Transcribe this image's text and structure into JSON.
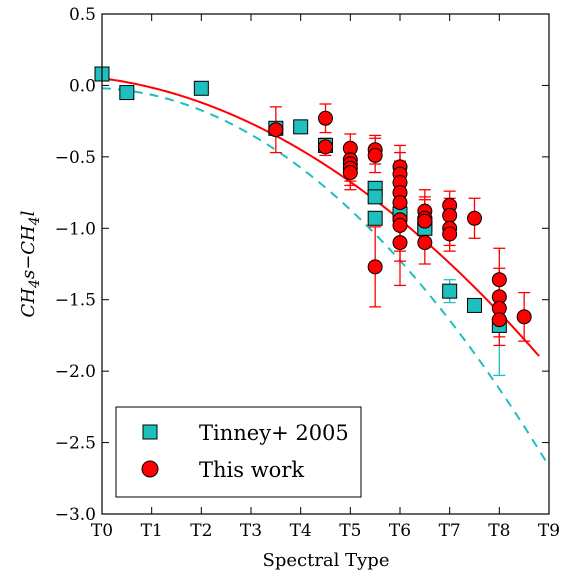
{
  "chart_data": {
    "type": "scatter",
    "xlabel": "Spectral Type",
    "ylabel": "CH4s−CH4l",
    "ylabel_parts": {
      "a": "CH",
      "a_sub": "4",
      "b": "s−CH",
      "b_sub": "4",
      "c": "l"
    },
    "xlim": [
      0,
      9
    ],
    "ylim": [
      -3.0,
      0.5
    ],
    "x_ticks": [
      0,
      1,
      2,
      3,
      4,
      5,
      6,
      7,
      8,
      9
    ],
    "x_tick_labels": [
      "T0",
      "T1",
      "T2",
      "T3",
      "T4",
      "T5",
      "T6",
      "T7",
      "T8",
      "T9"
    ],
    "y_ticks": [
      0.5,
      0.0,
      -0.5,
      -1.0,
      -1.5,
      -2.0,
      -2.5,
      -3.0
    ],
    "y_tick_labels": [
      "0.5",
      "0.0",
      "−0.5",
      "−1.0",
      "−1.5",
      "−2.0",
      "−2.5",
      "−3.0"
    ],
    "grid": false,
    "legend_position": "bottom-left",
    "series": [
      {
        "name": "Tinney+ 2005",
        "marker": "square",
        "color": "#1fbfbf",
        "points": [
          {
            "x": 0.0,
            "y": 0.08
          },
          {
            "x": 0.5,
            "y": -0.05
          },
          {
            "x": 2.0,
            "y": -0.02
          },
          {
            "x": 3.5,
            "y": -0.3
          },
          {
            "x": 4.0,
            "y": -0.29
          },
          {
            "x": 4.5,
            "y": -0.42
          },
          {
            "x": 5.5,
            "y": -0.72
          },
          {
            "x": 5.5,
            "y": -0.78
          },
          {
            "x": 5.5,
            "y": -0.93
          },
          {
            "x": 6.0,
            "y": -0.9
          },
          {
            "x": 6.5,
            "y": -0.97
          },
          {
            "x": 6.5,
            "y": -1.0
          },
          {
            "x": 7.0,
            "y": -1.44,
            "err": 0.08
          },
          {
            "x": 7.5,
            "y": -1.54
          },
          {
            "x": 8.0,
            "y": -1.68,
            "err": 0.35
          }
        ]
      },
      {
        "name": "This work",
        "marker": "circle",
        "color": "#ff0000",
        "points": [
          {
            "x": 3.5,
            "y": -0.31,
            "err": 0.16
          },
          {
            "x": 4.5,
            "y": -0.23,
            "err": 0.1
          },
          {
            "x": 4.5,
            "y": -0.43,
            "err": 0.06
          },
          {
            "x": 5.0,
            "y": -0.44,
            "err": 0.1
          },
          {
            "x": 5.0,
            "y": -0.52,
            "err": 0.1
          },
          {
            "x": 5.0,
            "y": -0.55,
            "err": 0.12
          },
          {
            "x": 5.0,
            "y": -0.58,
            "err": 0.12
          },
          {
            "x": 5.0,
            "y": -0.61,
            "err": 0.12
          },
          {
            "x": 5.5,
            "y": -0.45,
            "err": 0.1
          },
          {
            "x": 5.5,
            "y": -0.49,
            "err": 0.12
          },
          {
            "x": 5.5,
            "y": -1.27,
            "err": 0.28
          },
          {
            "x": 6.0,
            "y": -0.57,
            "err": 0.15
          },
          {
            "x": 6.0,
            "y": -0.62,
            "err": 0.15
          },
          {
            "x": 6.0,
            "y": -0.68,
            "err": 0.15
          },
          {
            "x": 6.0,
            "y": -0.75,
            "err": 0.15
          },
          {
            "x": 6.0,
            "y": -0.82,
            "err": 0.18
          },
          {
            "x": 6.0,
            "y": -0.94,
            "err": 0.22
          },
          {
            "x": 6.0,
            "y": -0.98,
            "err": 0.25
          },
          {
            "x": 6.0,
            "y": -1.1,
            "err": 0.3
          },
          {
            "x": 6.5,
            "y": -0.88,
            "err": 0.15
          },
          {
            "x": 6.5,
            "y": -0.93,
            "err": 0.15
          },
          {
            "x": 6.5,
            "y": -0.95,
            "err": 0.15
          },
          {
            "x": 6.5,
            "y": -1.1,
            "err": 0.15
          },
          {
            "x": 7.0,
            "y": -0.84,
            "err": 0.1
          },
          {
            "x": 7.0,
            "y": -0.91,
            "err": 0.12
          },
          {
            "x": 7.0,
            "y": -1.0,
            "err": 0.12
          },
          {
            "x": 7.0,
            "y": -1.04,
            "err": 0.12
          },
          {
            "x": 7.5,
            "y": -0.93,
            "err": 0.14
          },
          {
            "x": 8.0,
            "y": -1.36,
            "err": 0.22
          },
          {
            "x": 8.0,
            "y": -1.48,
            "err": 0.2
          },
          {
            "x": 8.0,
            "y": -1.56,
            "err": 0.2
          },
          {
            "x": 8.0,
            "y": -1.64,
            "err": 0.18
          },
          {
            "x": 8.5,
            "y": -1.62,
            "err": 0.17
          }
        ]
      }
    ],
    "fits": [
      {
        "series": "Tinney+ 2005",
        "style": "dashed",
        "color": "#1fbfbf",
        "coeffs": [
          -0.02,
          -0.015,
          -0.031
        ]
      },
      {
        "series": "This work",
        "style": "solid",
        "color": "#ff0000",
        "coeffs": [
          0.05,
          -0.045,
          -0.02
        ]
      }
    ]
  }
}
